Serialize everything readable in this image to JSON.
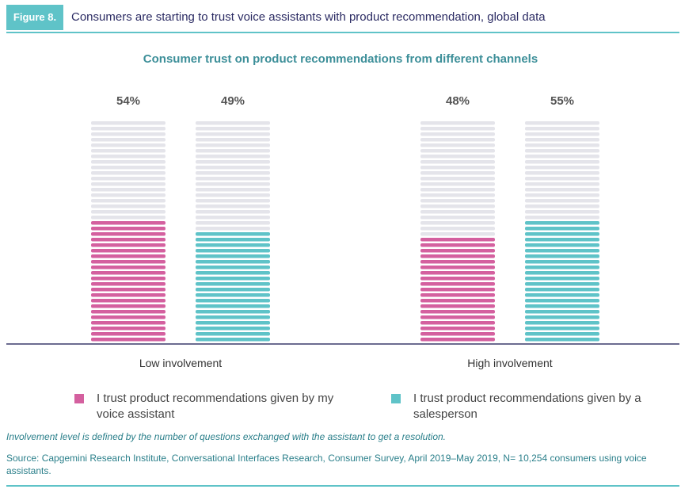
{
  "figure": {
    "tag": "Figure 8.",
    "title": "Consumers are starting to trust voice assistants with product recommendation, global data"
  },
  "chart_data": {
    "type": "bar",
    "title": "Consumer trust on product recommendations from different channels",
    "categories": [
      "Low involvement",
      "High involvement"
    ],
    "series": [
      {
        "name": "I trust product recommendations given by my voice assistant",
        "values": [
          54,
          48
        ],
        "color": "#d4609f",
        "value_labels": [
          "54%",
          "48%"
        ]
      },
      {
        "name": "I trust product recommendations given by a salesperson",
        "values": [
          49,
          55
        ],
        "color": "#5fc3c8",
        "value_labels": [
          "49%",
          "55%"
        ]
      }
    ],
    "ylim": [
      0,
      100
    ],
    "unit": "%",
    "grid": false,
    "legend_position": "bottom"
  },
  "legend": {
    "voice": "I trust product recommendations given by my voice assistant",
    "salesperson": "I trust product recommendations given by a salesperson"
  },
  "note": "Involvement level is defined by the number of questions exchanged with the assistant to get a resolution.",
  "source": "Source: Capgemini Research Institute, Conversational Interfaces Research, Consumer Survey, April 2019–May 2019, N= 10,254 consumers using voice assistants."
}
